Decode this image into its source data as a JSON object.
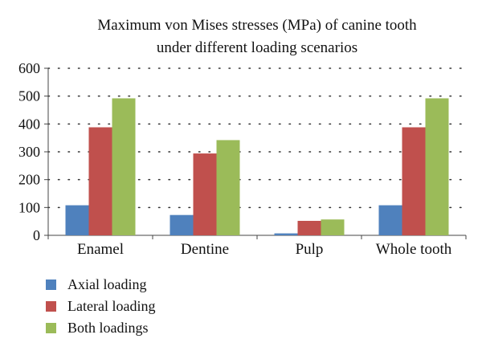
{
  "chart_data": {
    "type": "bar",
    "title": "Maximum von Mises stresses (MPa) of canine tooth under different loading scenarios",
    "title_lines": [
      "Maximum von Mises stresses (MPa) of canine tooth",
      "under different loading scenarios"
    ],
    "categories": [
      "Enamel",
      "Dentine",
      "Pulp",
      "Whole tooth"
    ],
    "series": [
      {
        "name": "Axial loading",
        "color": "#4f81bd",
        "values": [
          108,
          73,
          7,
          108
        ]
      },
      {
        "name": "Lateral loading",
        "color": "#c0504d",
        "values": [
          388,
          294,
          52,
          388
        ]
      },
      {
        "name": "Both loadings",
        "color": "#9bbb59",
        "values": [
          492,
          342,
          57,
          492
        ]
      }
    ],
    "ylim": [
      0,
      600
    ],
    "yticks": [
      0,
      100,
      200,
      300,
      400,
      500,
      600
    ],
    "xlabel": "",
    "ylabel": "",
    "grid": true,
    "legend_position": "bottom-left"
  }
}
